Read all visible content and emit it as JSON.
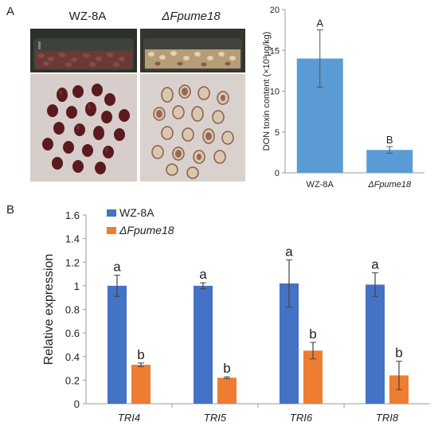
{
  "panels": {
    "a_label": "A",
    "b_label": "B"
  },
  "photos": {
    "left_label": "WZ-8A",
    "right_label": "ΔFpume18",
    "colors": {
      "flask_glass": "#3a3f37",
      "dark_kernel": "#5a1a1e",
      "pale_kernel": "#d9c8b0",
      "background_left": "#d7cdca",
      "background_right": "#d9d1cd"
    }
  },
  "chart_data": [
    {
      "type": "bar",
      "categories": [
        "WZ-8A",
        "ΔFpume18"
      ],
      "values": [
        14.0,
        2.8
      ],
      "errors": [
        3.5,
        0.4
      ],
      "significance": [
        "A",
        "B"
      ],
      "ylabel": "DON toxin content (×10³μg/kg)",
      "ylim": [
        0,
        20
      ],
      "yticks": [
        "0",
        "5",
        "10",
        "15",
        "20"
      ],
      "color": "#5b9bd5",
      "grid": false
    },
    {
      "type": "bar",
      "categories": [
        "TRI4",
        "TRI5",
        "TRI6",
        "TRI8"
      ],
      "series": [
        {
          "name": "WZ-8A",
          "color": "#4472c4",
          "values": [
            1.0,
            1.0,
            1.02,
            1.01
          ],
          "errors": [
            0.09,
            0.025,
            0.2,
            0.1
          ],
          "significance": [
            "a",
            "a",
            "a",
            "a"
          ]
        },
        {
          "name": "ΔFpume18",
          "color": "#ed7d31",
          "values": [
            0.33,
            0.22,
            0.45,
            0.24
          ],
          "errors": [
            0.015,
            0.008,
            0.07,
            0.12
          ],
          "significance": [
            "b",
            "b",
            "b",
            "b"
          ]
        }
      ],
      "ylabel": "Relative expression",
      "ylim": [
        0,
        1.6
      ],
      "yticks": [
        "0",
        "0.2",
        "0.4",
        "0.6",
        "0.8",
        "1",
        "1.2",
        "1.4",
        "1.6"
      ],
      "legend": "top-left",
      "grid": false
    }
  ]
}
